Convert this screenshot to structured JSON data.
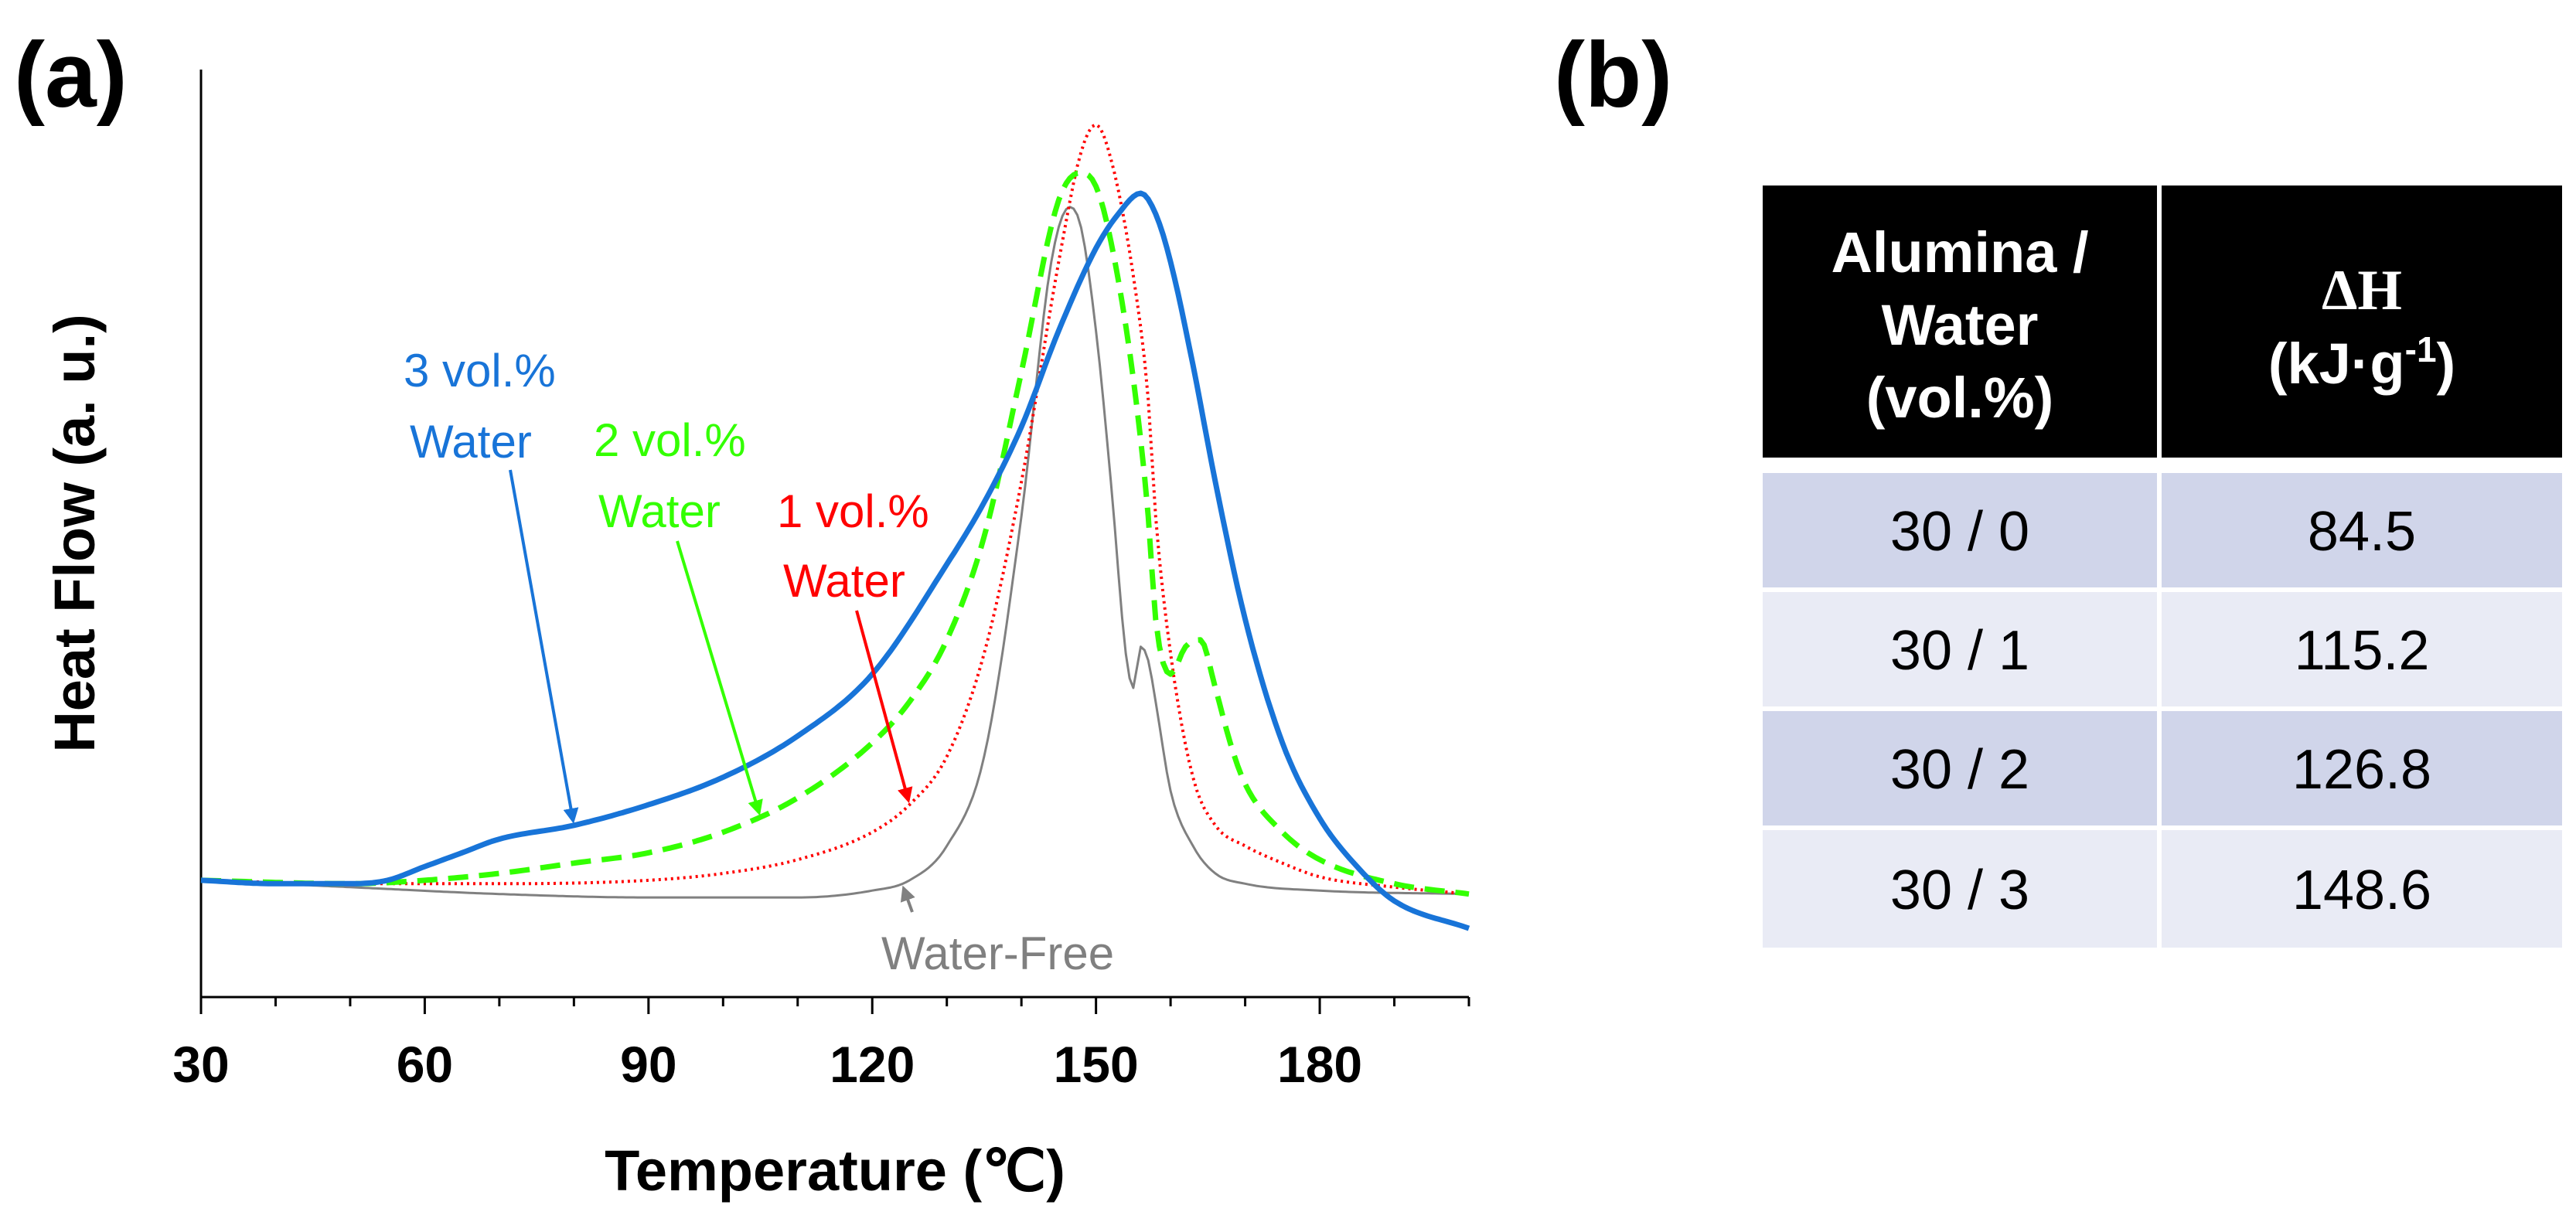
{
  "panel_a_label": "(a)",
  "panel_b_label": "(b)",
  "colors": {
    "water_free": "#808080",
    "one_vol": "#ff0000",
    "two_vol": "#33ff00",
    "three_vol": "#1874d8",
    "table_header_bg": "#000000",
    "table_row_dark": "#d0d5ea",
    "table_row_light": "#e9ebf5"
  },
  "chart_data": {
    "type": "line",
    "title": "",
    "xlabel": "Temperature (℃)",
    "ylabel": "Heat Flow (a. u.)",
    "xlim": [
      30,
      200
    ],
    "ylim": [
      -0.15,
      1.2
    ],
    "xticks": [
      30,
      60,
      90,
      120,
      150,
      180
    ],
    "grid": false,
    "series": [
      {
        "name": "Water-Free",
        "color": "#808080",
        "style": "solid",
        "x": [
          30,
          50,
          70,
          90,
          110,
          120,
          125,
          130,
          135,
          140,
          144,
          146.5,
          148,
          150,
          152,
          154,
          155,
          156,
          157,
          158,
          160,
          163,
          166,
          170,
          180,
          200
        ],
        "y": [
          0.02,
          0.01,
          0.0,
          -0.005,
          -0.005,
          0.005,
          0.02,
          0.07,
          0.2,
          0.55,
          0.92,
          1.0,
          0.97,
          0.82,
          0.6,
          0.35,
          0.3,
          0.36,
          0.34,
          0.28,
          0.15,
          0.07,
          0.03,
          0.015,
          0.005,
          0.0
        ]
      },
      {
        "name": "1 vol.% Water",
        "color": "#ff0000",
        "style": "dotted",
        "x": [
          30,
          50,
          70,
          90,
          100,
          110,
          120,
          125,
          130,
          135,
          140,
          145,
          148,
          150,
          152,
          155,
          157,
          158,
          160,
          163,
          166,
          170,
          175,
          180,
          190,
          200
        ],
        "y": [
          0.02,
          0.015,
          0.015,
          0.02,
          0.03,
          0.05,
          0.09,
          0.13,
          0.2,
          0.35,
          0.6,
          0.92,
          1.08,
          1.12,
          1.07,
          0.9,
          0.72,
          0.55,
          0.35,
          0.17,
          0.1,
          0.07,
          0.045,
          0.025,
          0.01,
          0.0
        ]
      },
      {
        "name": "2 vol.% Water",
        "color": "#33ff00",
        "style": "dashed",
        "x": [
          30,
          50,
          60,
          70,
          80,
          90,
          100,
          110,
          120,
          125,
          130,
          135,
          140,
          145,
          148,
          150,
          152,
          155,
          157,
          158,
          160,
          162,
          164,
          166,
          168,
          170,
          175,
          180,
          190,
          200
        ],
        "y": [
          0.02,
          0.015,
          0.02,
          0.03,
          0.045,
          0.06,
          0.09,
          0.14,
          0.22,
          0.28,
          0.37,
          0.52,
          0.76,
          1.01,
          1.05,
          1.03,
          0.95,
          0.75,
          0.55,
          0.4,
          0.32,
          0.36,
          0.37,
          0.3,
          0.22,
          0.16,
          0.09,
          0.05,
          0.015,
          0.0
        ]
      },
      {
        "name": "3 vol.% Water",
        "color": "#1874d8",
        "style": "solid",
        "x": [
          30,
          40,
          50,
          55,
          60,
          65,
          70,
          80,
          90,
          100,
          110,
          120,
          130,
          135,
          140,
          145,
          150,
          153,
          156,
          158,
          160,
          163,
          166,
          170,
          175,
          180,
          185,
          190,
          200
        ],
        "y": [
          0.02,
          0.015,
          0.015,
          0.02,
          0.04,
          0.06,
          0.08,
          0.1,
          0.13,
          0.17,
          0.23,
          0.32,
          0.48,
          0.57,
          0.68,
          0.82,
          0.94,
          0.99,
          1.02,
          0.99,
          0.92,
          0.77,
          0.6,
          0.4,
          0.22,
          0.11,
          0.04,
          -0.01,
          -0.05
        ]
      }
    ],
    "annotations": [
      {
        "line1": "3 vol.%",
        "line2": "Water",
        "color": "#1874d8",
        "target_x": 80
      },
      {
        "line1": "2 vol.%",
        "line2": "Water",
        "color": "#33ff00",
        "target_x": 105
      },
      {
        "line1": "1 vol.%",
        "line2": "Water",
        "color": "#ff0000",
        "target_x": 125
      },
      {
        "line1": "Water-Free",
        "color": "#808080",
        "target_x": 124
      }
    ]
  },
  "table": {
    "headers": [
      {
        "lines": [
          "Alumina /",
          "Water",
          "(vol.%)"
        ]
      },
      {
        "lines": [
          "ΔH",
          "(kJ·g",
          "-1",
          ")"
        ]
      }
    ],
    "rows": [
      {
        "ratio": "30 / 0",
        "dh": "84.5"
      },
      {
        "ratio": "30 / 1",
        "dh": "115.2"
      },
      {
        "ratio": "30 / 2",
        "dh": "126.8"
      },
      {
        "ratio": "30 / 3",
        "dh": "148.6"
      }
    ]
  }
}
